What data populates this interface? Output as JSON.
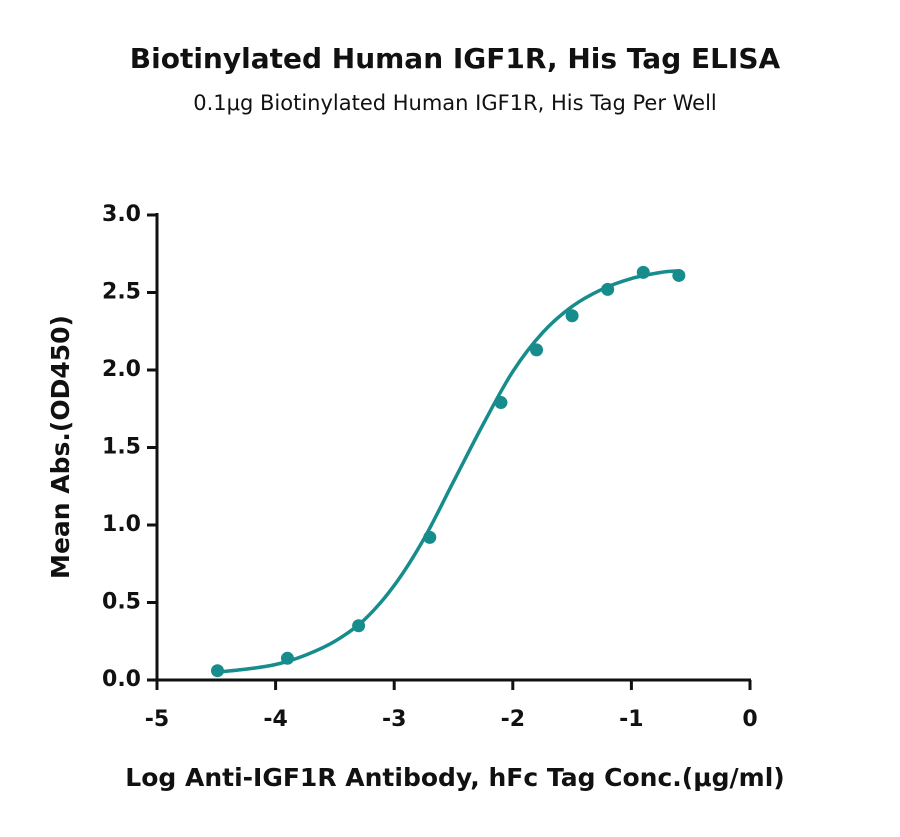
{
  "chart_data": {
    "type": "scatter",
    "title": "Biotinylated Human IGF1R, His Tag ELISA",
    "subtitle": "0.1μg Biotinylated Human IGF1R, His Tag Per Well",
    "x_label": "Log Anti-IGF1R Antibody, hFc Tag Conc.(μg/ml)",
    "y_label": "Mean Abs.(OD450)",
    "color": "#168c8c",
    "x": [
      -4.49,
      -3.9,
      -3.3,
      -2.7,
      -2.1,
      -1.8,
      -1.5,
      -1.2,
      -0.9,
      -0.6
    ],
    "values": [
      0.06,
      0.14,
      0.35,
      0.92,
      1.79,
      2.13,
      2.35,
      2.52,
      2.63,
      2.61
    ],
    "curve": {
      "x": [
        -4.5,
        -4.25,
        -4.0,
        -3.75,
        -3.5,
        -3.25,
        -3.0,
        -2.75,
        -2.5,
        -2.25,
        -2.0,
        -1.75,
        -1.5,
        -1.25,
        -1.0,
        -0.75,
        -0.6
      ],
      "values": [
        0.05,
        0.07,
        0.1,
        0.16,
        0.25,
        0.39,
        0.61,
        0.91,
        1.28,
        1.65,
        1.99,
        2.24,
        2.41,
        2.52,
        2.59,
        2.63,
        2.64
      ]
    },
    "xlim": [
      -5,
      0
    ],
    "xticks": [
      -5,
      -4,
      -3,
      -2,
      -1,
      0
    ],
    "ylim": [
      0,
      3
    ],
    "yticks": [
      {
        "value": 0,
        "label": "0.0"
      },
      0.5,
      {
        "value": 1,
        "label": "1.0"
      },
      1.5,
      {
        "value": 2,
        "label": "2.0"
      },
      2.5,
      {
        "value": 3,
        "label": "3.0"
      }
    ]
  }
}
